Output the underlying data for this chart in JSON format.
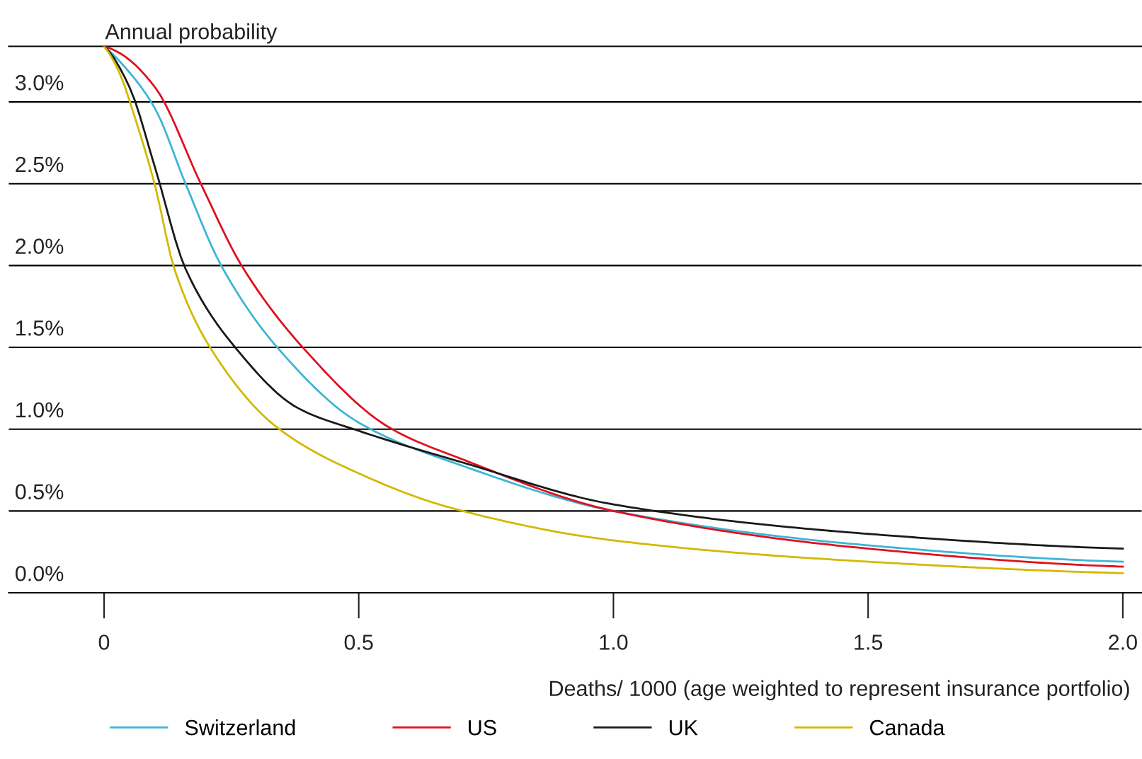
{
  "chart_data": {
    "type": "line",
    "ylabel": "Annual probability",
    "xlabel": "Deaths/ 1000 (age weighted to represent insurance portfolio)",
    "series": [
      {
        "name": "Switzerland",
        "color": "#3db5d6",
        "x": [
          0,
          0.05,
          0.1,
          0.16,
          0.23,
          0.34,
          0.5,
          0.7,
          1.0,
          1.5,
          2.0
        ],
        "values": [
          3.34,
          3.18,
          2.96,
          2.5,
          2.0,
          1.5,
          1.04,
          0.78,
          0.5,
          0.29,
          0.19
        ]
      },
      {
        "name": "US",
        "color": "#e0101e",
        "x": [
          0,
          0.03,
          0.1,
          0.19,
          0.27,
          0.39,
          0.56,
          0.7,
          1.0,
          1.5,
          2.0
        ],
        "values": [
          3.34,
          3.3,
          3.09,
          2.5,
          2.0,
          1.5,
          1.01,
          0.82,
          0.5,
          0.27,
          0.16
        ]
      },
      {
        "name": "UK",
        "color": "#1a1a1a",
        "x": [
          0,
          0.05,
          0.1,
          0.16,
          0.26,
          0.38,
          0.5,
          0.7,
          1.0,
          1.5,
          2.0
        ],
        "values": [
          3.34,
          3.09,
          2.6,
          1.98,
          1.49,
          1.13,
          0.99,
          0.8,
          0.54,
          0.36,
          0.27
        ]
      },
      {
        "name": "Canada",
        "color": "#d4b800",
        "x": [
          0,
          0.03,
          0.06,
          0.1,
          0.138,
          0.21,
          0.34,
          0.5,
          0.68,
          1.0,
          1.5,
          2.0
        ],
        "values": [
          3.34,
          3.18,
          2.91,
          2.49,
          1.98,
          1.49,
          1.01,
          0.73,
          0.52,
          0.32,
          0.19,
          0.12
        ]
      }
    ],
    "xlim": [
      -0.187,
      2.037
    ],
    "xticks": [
      0,
      0.5,
      {
        "value": 1.0,
        "label": "1.0"
      },
      1.5,
      {
        "value": 2.0,
        "label": "2.0"
      }
    ],
    "ylim": [
      0,
      3.34
    ],
    "yticks": [
      {
        "value": 0,
        "label": "0.0%"
      },
      {
        "value": 0.5,
        "label": "0.5%"
      },
      {
        "value": 1.0,
        "label": "1.0%"
      },
      {
        "value": 1.5,
        "label": "1.5%"
      },
      {
        "value": 2.0,
        "label": "2.0%"
      },
      {
        "value": 2.5,
        "label": "2.5%"
      },
      {
        "value": 3.0,
        "label": "3.0%"
      }
    ],
    "grid": "y",
    "legend": "bottom",
    "line_style": "solid",
    "marker": "none"
  }
}
